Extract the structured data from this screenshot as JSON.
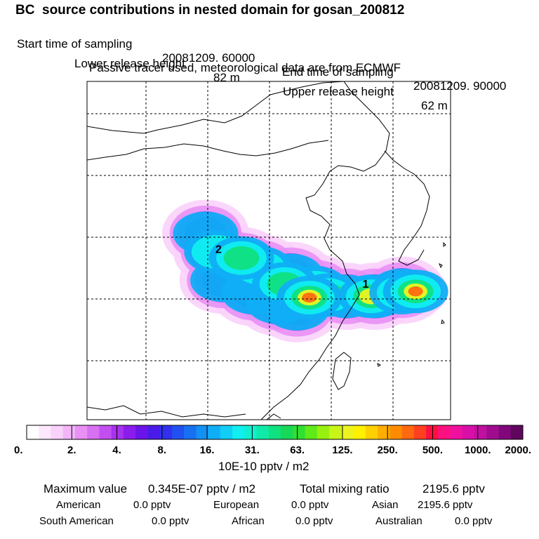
{
  "header": {
    "title": "BC  source contributions in nested domain for gosan_200812",
    "start_label": "Start time of sampling",
    "start_value": "20081209. 60000",
    "end_label": "End time of sampling",
    "end_value": "20081209. 90000",
    "lower_label": "Lower release height",
    "lower_value": "82 m",
    "upper_label": "Upper release height",
    "upper_value": "62 m",
    "note": "Passive tracer used, meteorological data are from ECMWF"
  },
  "chart_data": {
    "type": "heatmap",
    "title": "BC  source contributions in nested domain for gosan_200812",
    "colorbar": {
      "unit": "10E-10 pptv / m2",
      "tick_labels": [
        "0.",
        "2.",
        "4.",
        "8.",
        "16.",
        "31.",
        "63.",
        "125.",
        "250.",
        "500.",
        "1000.",
        "2000."
      ],
      "colors": [
        "#ffffff",
        "#fde8fd",
        "#f9d2fb",
        "#f3b4f8",
        "#e890f5",
        "#d870f2",
        "#c24ef0",
        "#a830ee",
        "#8a1cec",
        "#6a14ea",
        "#4a1ae8",
        "#3030ee",
        "#2250f0",
        "#1870f2",
        "#1290f4",
        "#10aef6",
        "#10cef6",
        "#10eef0",
        "#10f0d0",
        "#10eaa8",
        "#10e280",
        "#18d858",
        "#30e030",
        "#60ea18",
        "#98f010",
        "#c8f418",
        "#ecf420",
        "#fff000",
        "#ffd000",
        "#ffae00",
        "#ff8c00",
        "#ff6a10",
        "#ff4020",
        "#ff1040",
        "#ff1080",
        "#f010a0",
        "#d810a8",
        "#c010a0",
        "#a00c90",
        "#80087a",
        "#60065e"
      ]
    },
    "labelled_points": [
      {
        "label": "1",
        "lon": 116.3,
        "lat": 31.2
      },
      {
        "label": "2",
        "lon": 104.4,
        "lat": 34.0
      }
    ],
    "receptor": {
      "name": "gosan",
      "lon": 126.2,
      "lat": 33.3
    },
    "grid": true,
    "plumes": [
      {
        "lon": 103.6,
        "lat": 35.6,
        "level": 4
      },
      {
        "lon": 104.5,
        "lat": 34.1,
        "level": 5
      },
      {
        "lon": 106.5,
        "lat": 33.4,
        "level": 4
      },
      {
        "lon": 108.0,
        "lat": 32.8,
        "level": 5
      },
      {
        "lon": 110.5,
        "lat": 32.2,
        "level": 4
      },
      {
        "lon": 112.5,
        "lat": 31.2,
        "level": 5
      },
      {
        "lon": 115.0,
        "lat": 30.5,
        "level": 4
      },
      {
        "lon": 117.3,
        "lat": 30.5,
        "level": 5
      },
      {
        "lon": 119.5,
        "lat": 31.0,
        "level": 4
      },
      {
        "lon": 105.0,
        "lat": 31.8,
        "level": 4
      },
      {
        "lon": 107.5,
        "lat": 30.8,
        "level": 4
      },
      {
        "lon": 109.5,
        "lat": 30.0,
        "level": 4
      },
      {
        "lon": 111.0,
        "lat": 29.5,
        "level": 4
      },
      {
        "lon": 106.5,
        "lat": 33.6,
        "level": 6
      },
      {
        "lon": 110.0,
        "lat": 31.5,
        "level": 6
      },
      {
        "lon": 113.5,
        "lat": 30.6,
        "level": 6
      },
      {
        "lon": 117.0,
        "lat": 30.5,
        "level": 7
      },
      {
        "lon": 119.5,
        "lat": 30.8,
        "level": 7
      },
      {
        "lon": 120.6,
        "lat": 30.9,
        "level": 8
      },
      {
        "lon": 112.0,
        "lat": 30.4,
        "level": 8
      }
    ]
  },
  "stats": {
    "max_label": "Maximum value",
    "max_value": "0.345E-07 pptv / m2",
    "total_label": "Total mixing ratio",
    "total_value": "2195.6 pptv",
    "regions": [
      {
        "name": "American",
        "value": "0.0 pptv"
      },
      {
        "name": "European",
        "value": "0.0 pptv"
      },
      {
        "name": "Asian",
        "value": "2195.6 pptv"
      },
      {
        "name": "South American",
        "value": "0.0 pptv"
      },
      {
        "name": "African",
        "value": "0.0 pptv"
      },
      {
        "name": "Australian",
        "value": "0.0 pptv"
      }
    ]
  }
}
